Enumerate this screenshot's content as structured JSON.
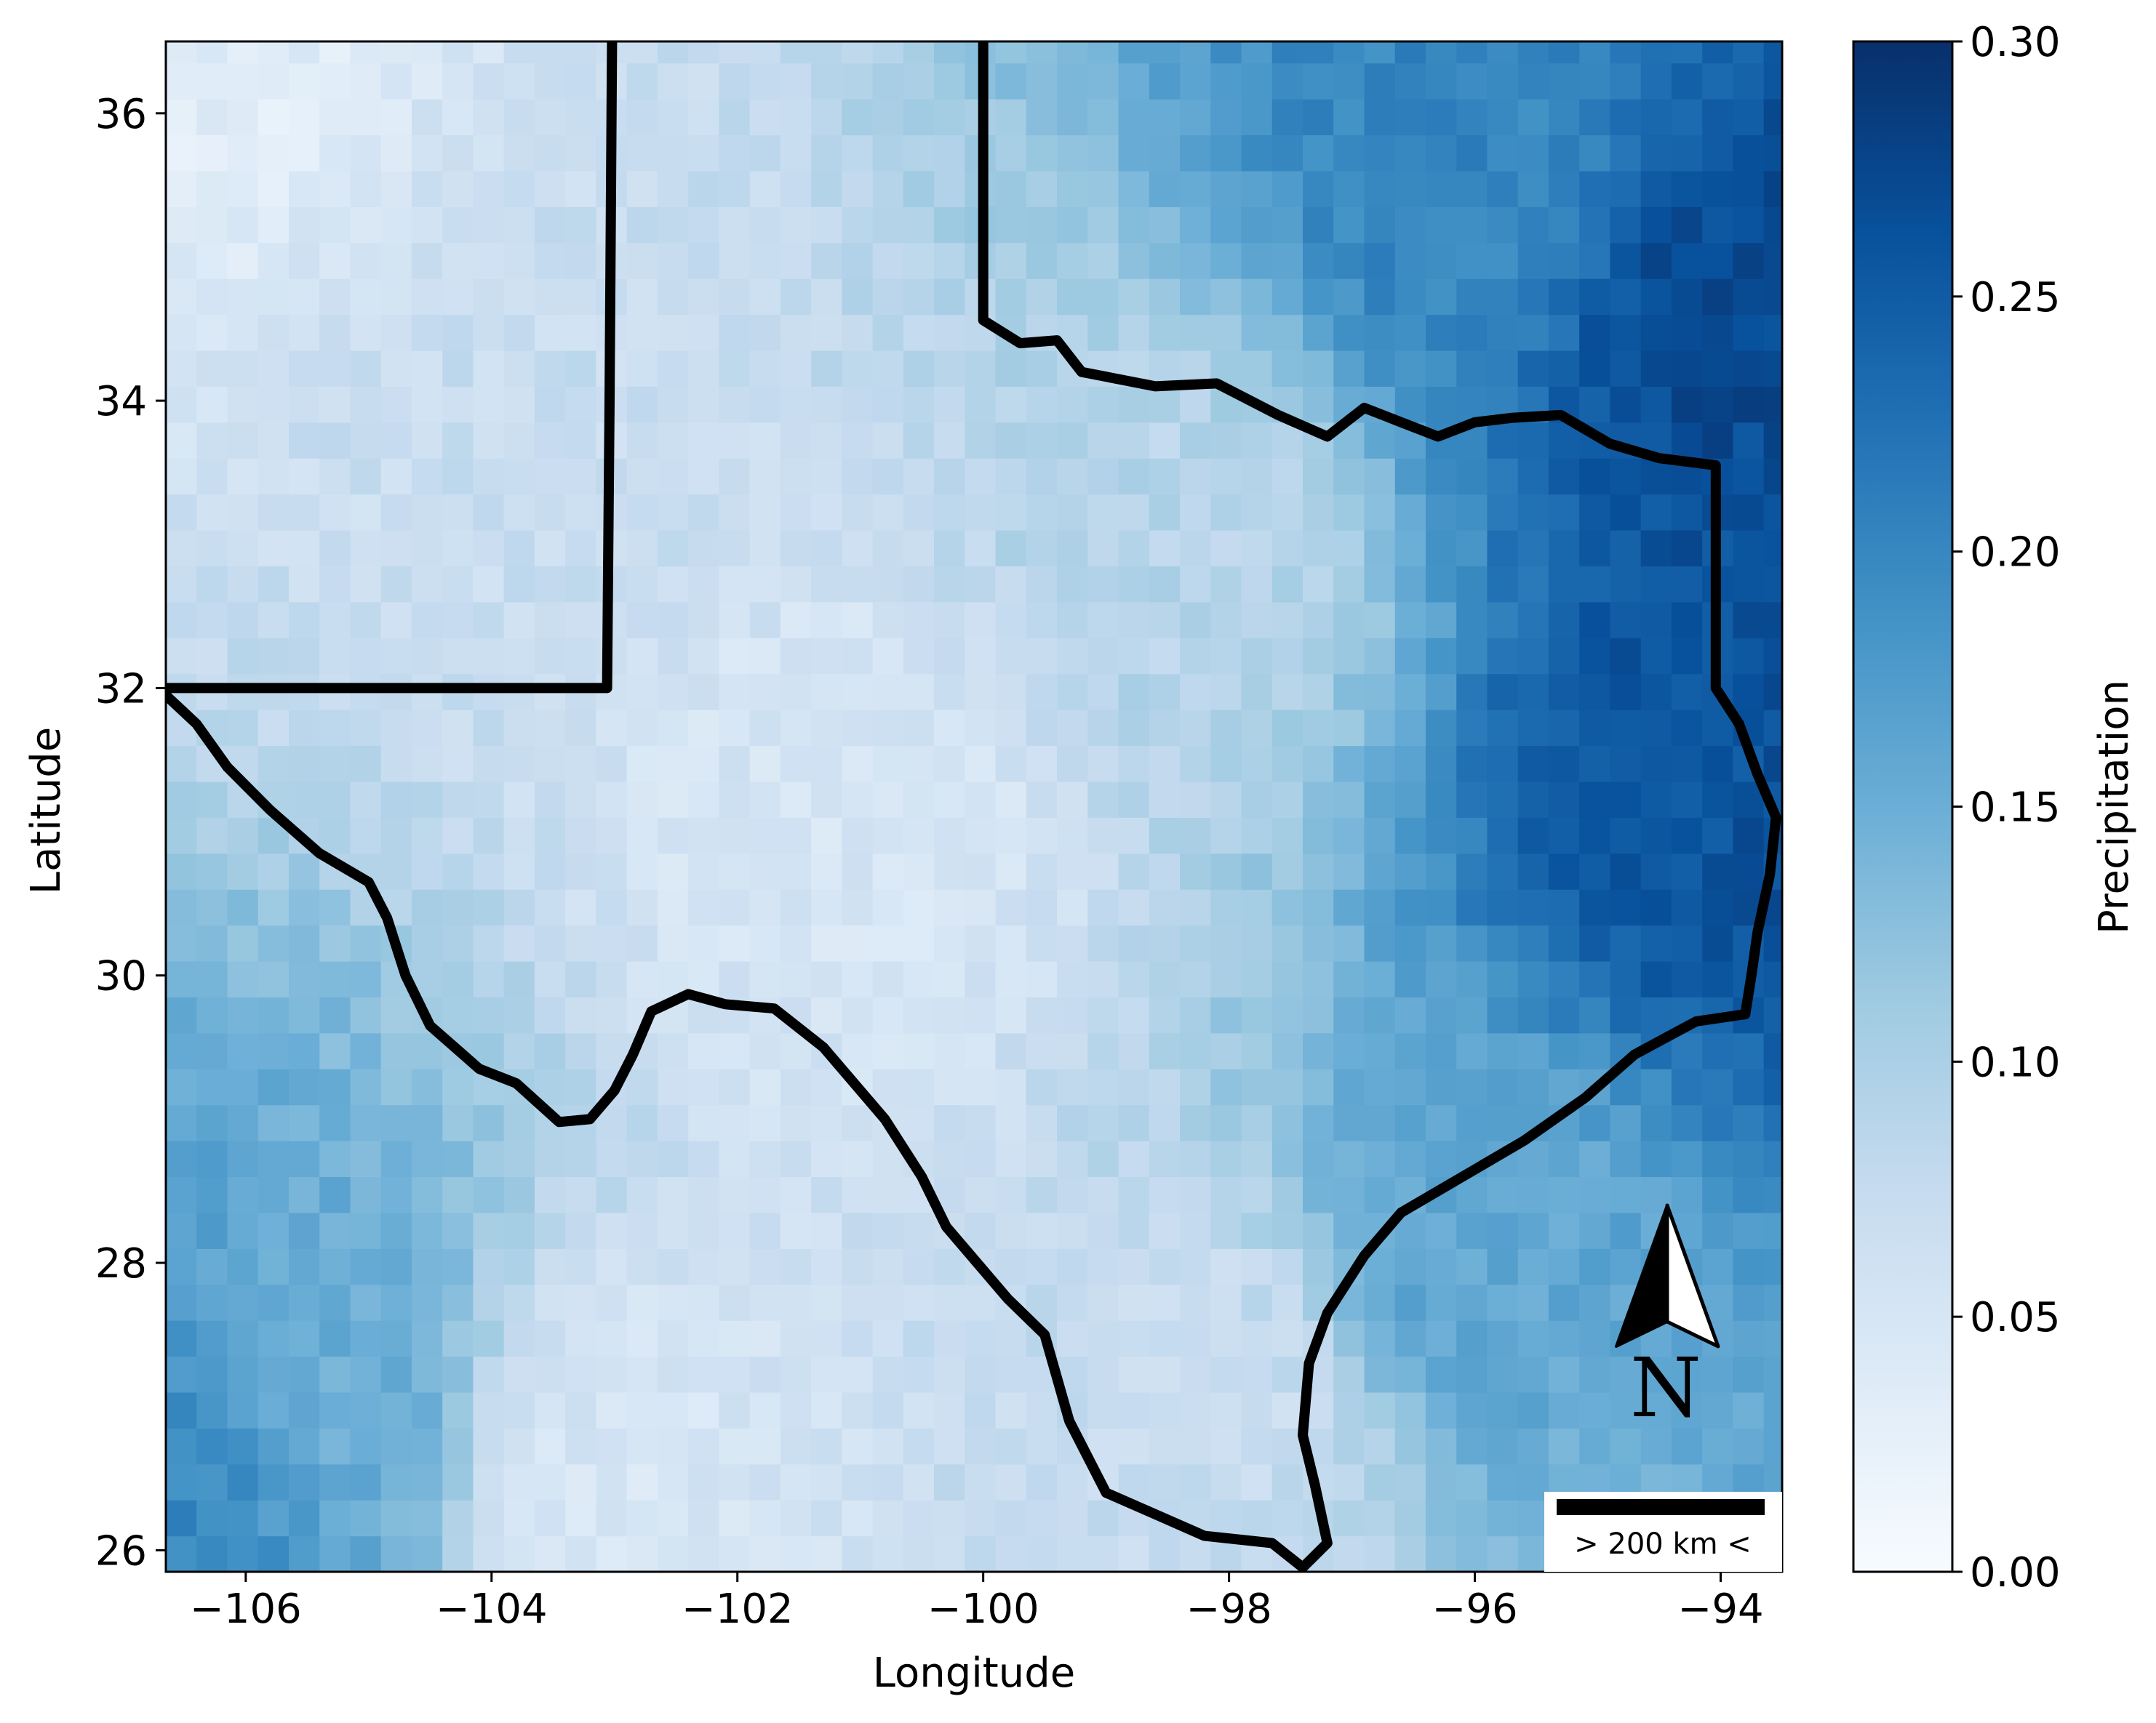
{
  "chart_data": {
    "type": "heatmap",
    "title": "",
    "xlabel": "Longitude",
    "ylabel": "Latitude",
    "xlim": [
      -106.65,
      -93.5
    ],
    "ylim": [
      25.85,
      36.5
    ],
    "x_ticks": [
      -106,
      -104,
      -102,
      -100,
      -98,
      -96,
      -94
    ],
    "x_tick_labels": [
      "−106",
      "−104",
      "−102",
      "−100",
      "−98",
      "−96",
      "−94"
    ],
    "y_ticks": [
      26,
      28,
      30,
      32,
      34,
      36
    ],
    "y_tick_labels": [
      "26",
      "28",
      "30",
      "32",
      "34",
      "36"
    ],
    "grid": false,
    "colorbar": {
      "label": "Precipitation",
      "colormap": "Blues",
      "range": [
        0.0,
        0.3
      ],
      "ticks": [
        0.0,
        0.05,
        0.1,
        0.15,
        0.2,
        0.25,
        0.3
      ],
      "tick_labels": [
        "0.00",
        "0.05",
        "0.10",
        "0.15",
        "0.20",
        "0.25",
        "0.30"
      ]
    },
    "grid_resolution_deg": 0.25,
    "field_approx": {
      "description_of_gradient_anchors": [
        {
          "lon": -106.5,
          "lat": 36.3,
          "value": 0.035
        },
        {
          "lon": -104.0,
          "lat": 34.0,
          "value": 0.07
        },
        {
          "lon": -101.0,
          "lat": 31.0,
          "value": 0.05
        },
        {
          "lon": -98.5,
          "lat": 33.0,
          "value": 0.09
        },
        {
          "lon": -96.0,
          "lat": 35.5,
          "value": 0.2
        },
        {
          "lon": -94.0,
          "lat": 34.5,
          "value": 0.27
        },
        {
          "lon": -94.0,
          "lat": 31.2,
          "value": 0.26
        },
        {
          "lon": -96.0,
          "lat": 28.0,
          "value": 0.16
        },
        {
          "lon": -98.0,
          "lat": 27.0,
          "value": 0.07
        },
        {
          "lon": -106.4,
          "lat": 26.5,
          "value": 0.2
        },
        {
          "lon": -105.5,
          "lat": 27.0,
          "value": 0.15
        },
        {
          "lon": -103.0,
          "lat": 26.5,
          "value": 0.05
        }
      ]
    },
    "boundaries": [
      {
        "name": "new-mexico-texas-border",
        "points": [
          [
            -106.65,
            32.0
          ],
          [
            -103.06,
            32.0
          ],
          [
            -103.04,
            34.0
          ],
          [
            -103.02,
            36.5
          ]
        ]
      },
      {
        "name": "oklahoma-panhandle-border",
        "points": [
          [
            -100.0,
            36.5
          ],
          [
            -100.0,
            34.56
          ],
          [
            -99.7,
            34.4
          ],
          [
            -99.4,
            34.42
          ],
          [
            -99.2,
            34.2
          ],
          [
            -98.6,
            34.1
          ],
          [
            -98.1,
            34.12
          ],
          [
            -97.6,
            33.9
          ],
          [
            -97.2,
            33.75
          ],
          [
            -96.9,
            33.95
          ],
          [
            -96.6,
            33.85
          ],
          [
            -96.3,
            33.75
          ],
          [
            -96.0,
            33.85
          ],
          [
            -95.7,
            33.88
          ],
          [
            -95.3,
            33.9
          ],
          [
            -94.9,
            33.7
          ],
          [
            -94.5,
            33.6
          ],
          [
            -94.04,
            33.55
          ],
          [
            -94.04,
            32.0
          ]
        ]
      },
      {
        "name": "louisiana-border",
        "points": [
          [
            -94.04,
            32.0
          ],
          [
            -93.85,
            31.75
          ],
          [
            -93.7,
            31.4
          ],
          [
            -93.55,
            31.1
          ],
          [
            -93.6,
            30.7
          ],
          [
            -93.7,
            30.3
          ],
          [
            -93.75,
            30.0
          ],
          [
            -93.8,
            29.73
          ]
        ]
      },
      {
        "name": "gulf-coast",
        "points": [
          [
            -93.8,
            29.73
          ],
          [
            -94.2,
            29.68
          ],
          [
            -94.7,
            29.45
          ],
          [
            -95.1,
            29.15
          ],
          [
            -95.6,
            28.85
          ],
          [
            -96.1,
            28.6
          ],
          [
            -96.6,
            28.35
          ],
          [
            -96.9,
            28.05
          ],
          [
            -97.2,
            27.65
          ],
          [
            -97.35,
            27.3
          ],
          [
            -97.4,
            26.8
          ],
          [
            -97.3,
            26.45
          ],
          [
            -97.2,
            26.05
          ],
          [
            -97.4,
            25.88
          ]
        ]
      },
      {
        "name": "rio-grande-border",
        "points": [
          [
            -97.4,
            25.88
          ],
          [
            -97.65,
            26.05
          ],
          [
            -98.2,
            26.1
          ],
          [
            -98.6,
            26.25
          ],
          [
            -99.0,
            26.4
          ],
          [
            -99.3,
            26.9
          ],
          [
            -99.5,
            27.5
          ],
          [
            -99.8,
            27.75
          ],
          [
            -100.3,
            28.25
          ],
          [
            -100.5,
            28.6
          ],
          [
            -100.8,
            29.0
          ],
          [
            -101.3,
            29.5
          ],
          [
            -101.7,
            29.77
          ],
          [
            -102.1,
            29.8
          ],
          [
            -102.4,
            29.87
          ],
          [
            -102.7,
            29.75
          ],
          [
            -102.85,
            29.45
          ],
          [
            -103.0,
            29.2
          ],
          [
            -103.2,
            29.0
          ],
          [
            -103.45,
            28.98
          ],
          [
            -103.8,
            29.25
          ],
          [
            -104.1,
            29.35
          ],
          [
            -104.5,
            29.65
          ],
          [
            -104.7,
            30.0
          ],
          [
            -104.85,
            30.4
          ],
          [
            -105.0,
            30.65
          ],
          [
            -105.4,
            30.85
          ],
          [
            -105.8,
            31.15
          ],
          [
            -106.15,
            31.45
          ],
          [
            -106.4,
            31.75
          ],
          [
            -106.65,
            31.95
          ]
        ]
      }
    ],
    "annotations": {
      "north_arrow_label": "N",
      "scale_bar_label": "> 200 km <"
    }
  }
}
